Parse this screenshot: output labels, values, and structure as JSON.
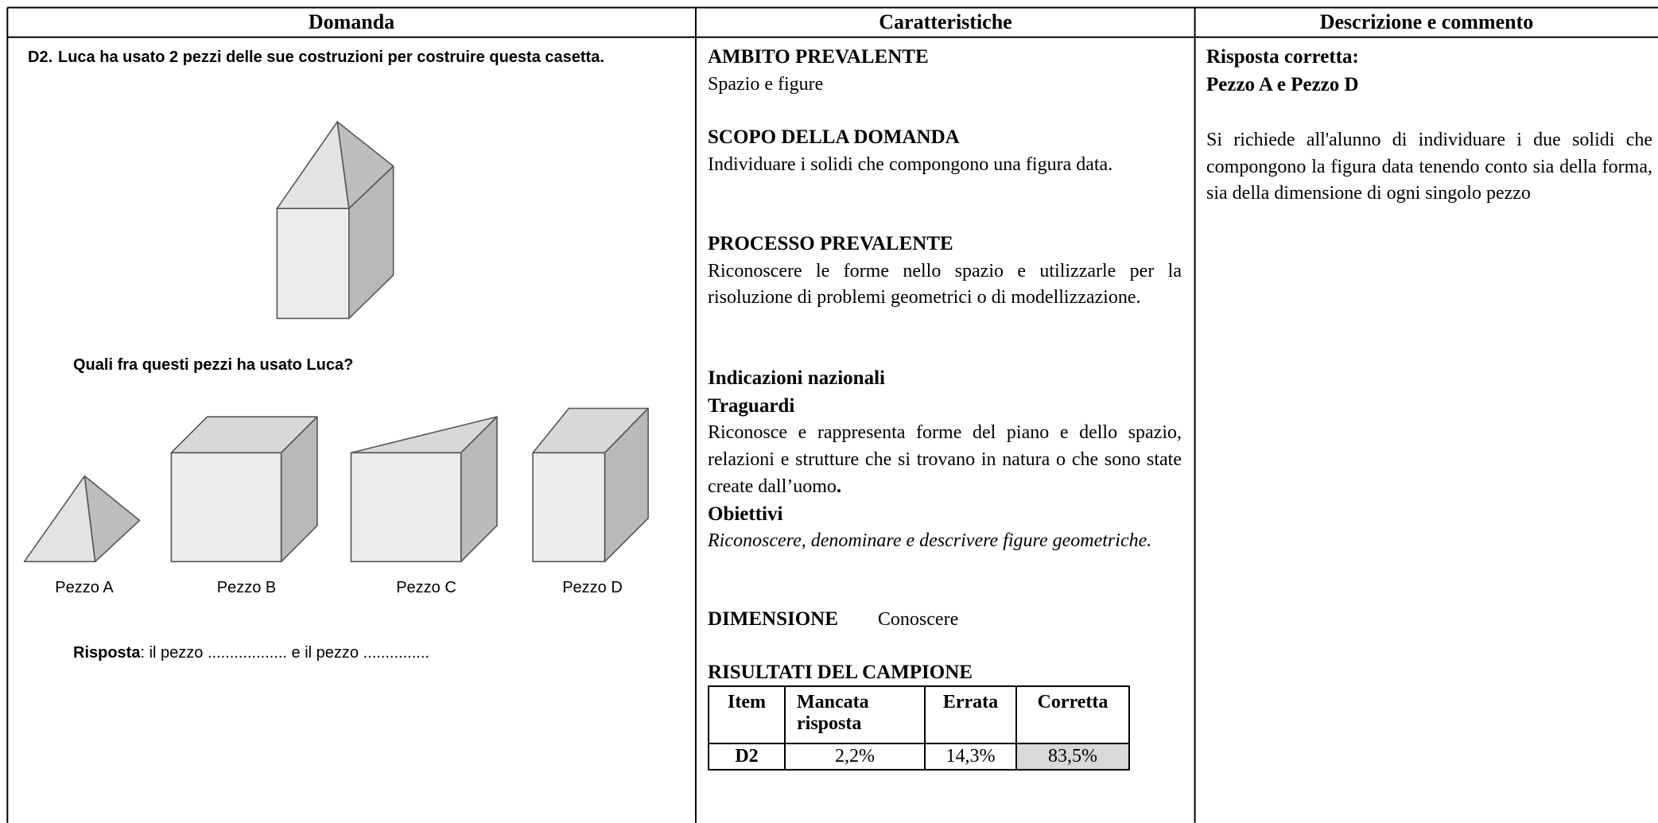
{
  "headers": [
    "Domanda",
    "Caratteristiche",
    "Descrizione e commento"
  ],
  "question": {
    "number": "D2.",
    "text": "Luca ha usato 2 pezzi delle sue costruzioni per costruire questa casetta.",
    "prompt": "Quali fra questi pezzi ha usato Luca?",
    "pieces": [
      "Pezzo A",
      "Pezzo B",
      "Pezzo C",
      "Pezzo D"
    ],
    "answer_label": "Risposta",
    "answer_text": ": il pezzo .................. e il pezzo ..............."
  },
  "features": {
    "ambito_title": "AMBITO PREVALENTE",
    "ambito": "Spazio e figure",
    "scopo_title": "SCOPO DELLA DOMANDA",
    "scopo": "Individuare i solidi che compongono una figura data.",
    "processo_title": "PROCESSO PREVALENTE",
    "processo": "Riconoscere le forme nello spazio e utilizzarle per la risoluzione di problemi geometrici o di modellizzazione.",
    "indicazioni_title": "Indicazioni nazionali",
    "traguardi_title": "Traguardi",
    "traguardi": "Riconosce e rappresenta forme del piano e dello spazio, relazioni e strutture che si trovano in natura o che sono state create dall’uomo",
    "traguardi_end": ".",
    "obiettivi_title": "Obiettivi",
    "obiettivi": "Riconoscere, denominare e descrivere figure geometriche.",
    "dimensione_title": "DIMENSIONE",
    "dimensione": "Conoscere",
    "risultati_title": "RISULTATI DEL CAMPIONE"
  },
  "results_table": {
    "header": [
      "Item",
      "Mancata risposta",
      "Errata",
      "Corretta"
    ],
    "rows": [
      [
        "D2",
        "2,2%",
        "14,3%",
        "83,5%"
      ]
    ]
  },
  "description": {
    "title": "Risposta corretta:",
    "answer": "Pezzo A e Pezzo D",
    "comment": "Si richiede all'alunno di individuare i due solidi che compongono la figura data tenendo conto sia della forma, sia della dimensione di ogni singolo pezzo"
  }
}
